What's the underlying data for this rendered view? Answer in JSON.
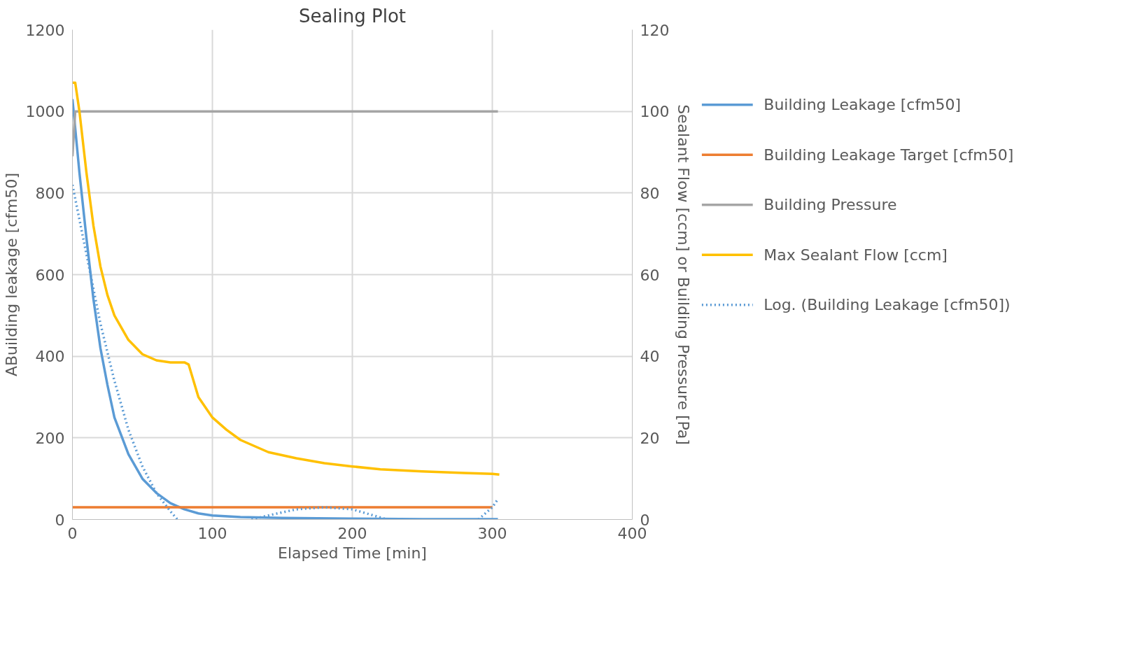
{
  "chart_data": {
    "type": "line",
    "title": "Sealing Plot",
    "xlabel": "Elapsed Time [min]",
    "ylabel": "ABuilding leakage [cfm50]",
    "y2label": "Sealant Flow [ccm] or Building Pressure [Pa]",
    "xlim": [
      0,
      400
    ],
    "xticks": [
      0,
      100,
      200,
      300,
      400
    ],
    "ylim": [
      0,
      1200
    ],
    "yticks": [
      0,
      200,
      400,
      600,
      800,
      1000,
      1200
    ],
    "y2lim": [
      0,
      120
    ],
    "y2ticks": [
      0,
      20,
      40,
      60,
      80,
      100,
      120
    ],
    "grid": true,
    "legend": "right",
    "marker": "none",
    "series": [
      {
        "name": "Building Leakage [cfm50]",
        "color": "#5b9bd5",
        "line_style": "solid",
        "x": [
          0,
          5,
          10,
          15,
          20,
          25,
          30,
          40,
          50,
          60,
          70,
          80,
          90,
          100,
          120,
          150,
          200,
          250,
          304
        ],
        "values": [
          1030,
          850,
          690,
          540,
          420,
          330,
          250,
          160,
          100,
          65,
          40,
          25,
          15,
          10,
          6,
          4,
          2,
          1,
          1
        ]
      },
      {
        "name": "Building Leakage Target [cfm50]",
        "color": "#ed7d31",
        "line_style": "solid",
        "x": [
          0,
          300
        ],
        "values": [
          30,
          30
        ]
      },
      {
        "name": "Building Pressure",
        "color": "#a5a5a5",
        "line_style": "solid",
        "axis": "y2",
        "x": [
          0,
          2,
          304
        ],
        "values": [
          89,
          100,
          100
        ]
      },
      {
        "name": "Max Sealant Flow [ccm]",
        "color": "#ffc000",
        "line_style": "solid",
        "axis": "y2",
        "x": [
          0,
          2,
          5,
          10,
          15,
          20,
          25,
          30,
          40,
          50,
          60,
          70,
          80,
          83,
          90,
          100,
          110,
          120,
          140,
          160,
          180,
          200,
          220,
          250,
          280,
          300,
          305
        ],
        "values": [
          107,
          107,
          100,
          85,
          72,
          62,
          55,
          50,
          44,
          40.5,
          39,
          38.5,
          38.5,
          38,
          30,
          25,
          22,
          19.5,
          16.5,
          15,
          13.8,
          13,
          12.3,
          11.8,
          11.4,
          11.2,
          11
        ]
      },
      {
        "name": "Log. (Building Leakage [cfm50])",
        "color": "#5b9bd5",
        "line_style": "dotted",
        "x": [
          0,
          10,
          20,
          30,
          40,
          50,
          60,
          70,
          75,
          100,
          128,
          140,
          160,
          180,
          200,
          215,
          225,
          260,
          290,
          300,
          304
        ],
        "values": [
          820,
          650,
          480,
          340,
          220,
          130,
          65,
          20,
          0,
          null,
          0,
          10,
          25,
          30,
          25,
          10,
          0,
          null,
          0,
          30,
          50
        ]
      }
    ]
  }
}
